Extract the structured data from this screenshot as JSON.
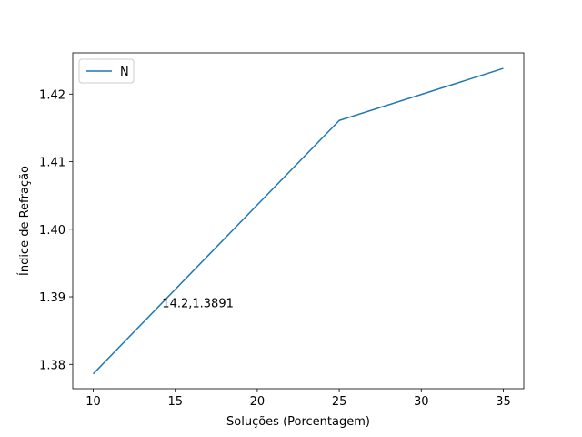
{
  "chart_data": {
    "type": "line",
    "title": "",
    "xlabel": "Soluções (Porcentagem)",
    "ylabel": "Índice de Refração",
    "xlim": [
      8.75,
      36.25
    ],
    "ylim": [
      1.3764,
      1.4261
    ],
    "xticks": [
      10,
      15,
      20,
      25,
      30,
      35
    ],
    "yticks": [
      1.38,
      1.39,
      1.4,
      1.41,
      1.42
    ],
    "ytick_labels": [
      "1.38",
      "1.39",
      "1.40",
      "1.41",
      "1.42"
    ],
    "grid": false,
    "legend": "top-left",
    "series": [
      {
        "name": "N",
        "color": "#1f77b4",
        "x": [
          10,
          25,
          35
        ],
        "y": [
          1.3786,
          1.4161,
          1.4238
        ]
      }
    ],
    "annotations": [
      {
        "text": "14.2,1.3891",
        "x": 14.2,
        "y": 1.3891
      }
    ]
  }
}
